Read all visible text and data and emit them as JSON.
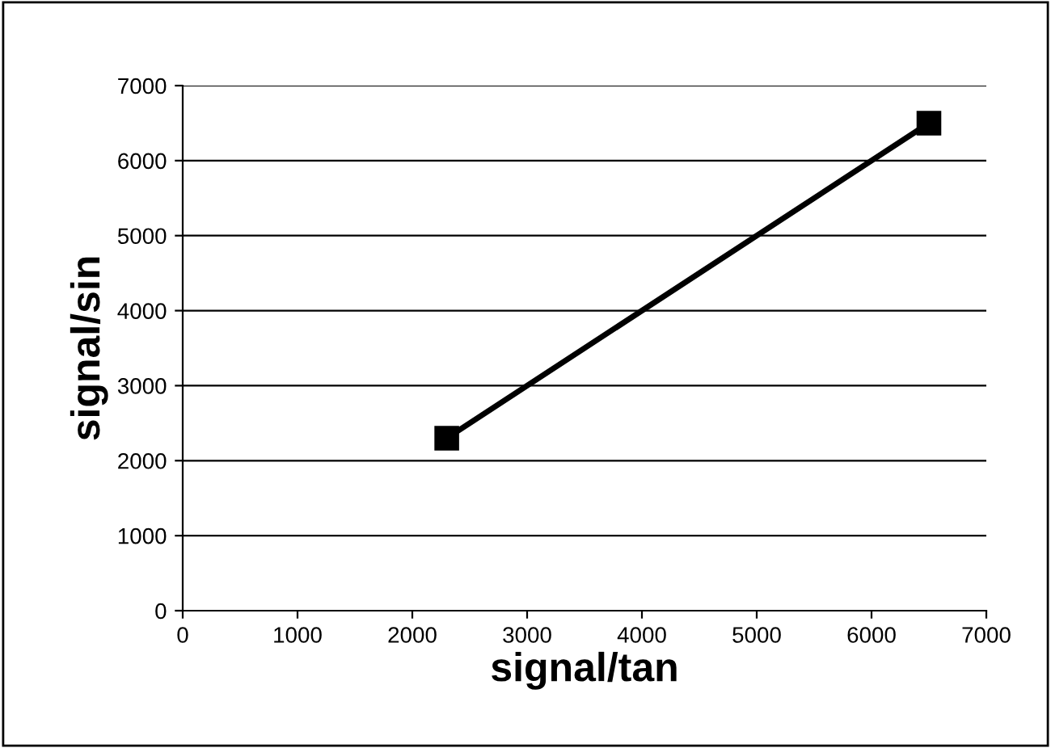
{
  "chart_data": {
    "type": "line",
    "xlabel": "signal/tan",
    "ylabel": "signal/sin",
    "series": [
      {
        "color": "#000000",
        "x": [
          2300,
          6500
        ],
        "values": [
          2300,
          6500
        ]
      }
    ],
    "xlim": [
      0,
      7000
    ],
    "xticks": [
      0,
      1000,
      2000,
      3000,
      4000,
      5000,
      6000,
      7000
    ],
    "ylim": [
      0,
      7000
    ],
    "yticks": [
      0,
      1000,
      2000,
      3000,
      4000,
      5000,
      6000,
      7000
    ],
    "grid": "y",
    "marker": "square",
    "line_style": "solid",
    "legend": false
  }
}
